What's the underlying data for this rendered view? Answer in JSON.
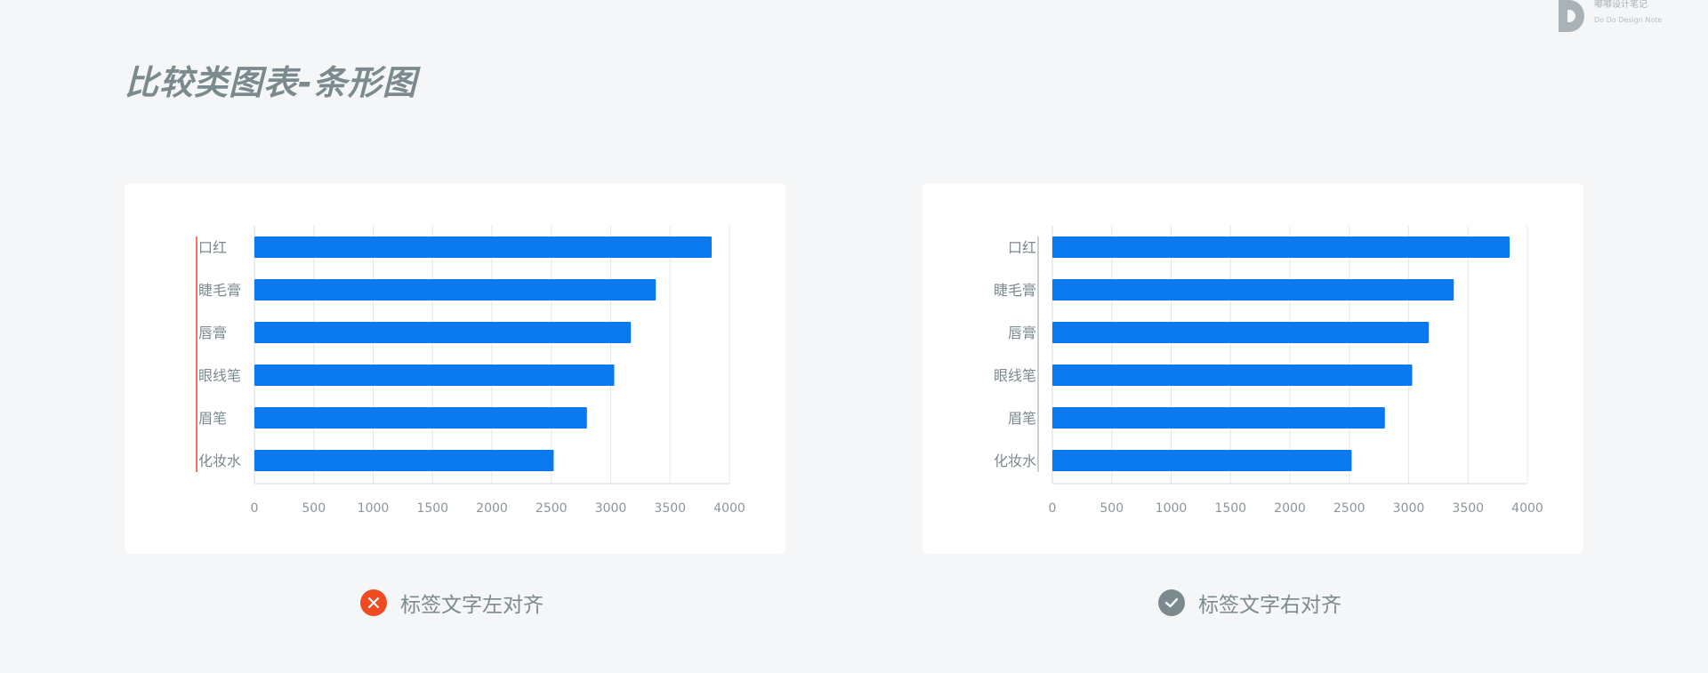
{
  "page": {
    "title": "比较类图表-条形图",
    "logo": {
      "cn": "嘟嘟设计笔记",
      "en": "Do Do Design Note"
    }
  },
  "colors": {
    "bar": "#0a78ee",
    "bad": "#f04a23",
    "good": "#7b8a8e",
    "grid": "#e6e9ec",
    "tick_text": "#8a969a"
  },
  "captions": {
    "left": {
      "text": "标签文字左对齐",
      "icon": "cross-icon"
    },
    "right": {
      "text": "标签文字右对齐",
      "icon": "check-icon"
    }
  },
  "chart_data": [
    {
      "type": "bar",
      "orientation": "horizontal",
      "label_align": "left",
      "categories": [
        "口红",
        "睫毛膏",
        "唇膏",
        "眼线笔",
        "眉笔",
        "化妆水"
      ],
      "values": [
        3850,
        3380,
        3170,
        3030,
        2800,
        2520
      ],
      "xlim": [
        0,
        4000
      ],
      "xticks": [
        0,
        500,
        1000,
        1500,
        2000,
        2500,
        3000,
        3500,
        4000
      ],
      "grid": true
    },
    {
      "type": "bar",
      "orientation": "horizontal",
      "label_align": "right",
      "categories": [
        "口红",
        "睫毛膏",
        "唇膏",
        "眼线笔",
        "眉笔",
        "化妆水"
      ],
      "values": [
        3850,
        3380,
        3170,
        3030,
        2800,
        2520
      ],
      "xlim": [
        0,
        4000
      ],
      "xticks": [
        0,
        500,
        1000,
        1500,
        2000,
        2500,
        3000,
        3500,
        4000
      ],
      "grid": true
    }
  ]
}
